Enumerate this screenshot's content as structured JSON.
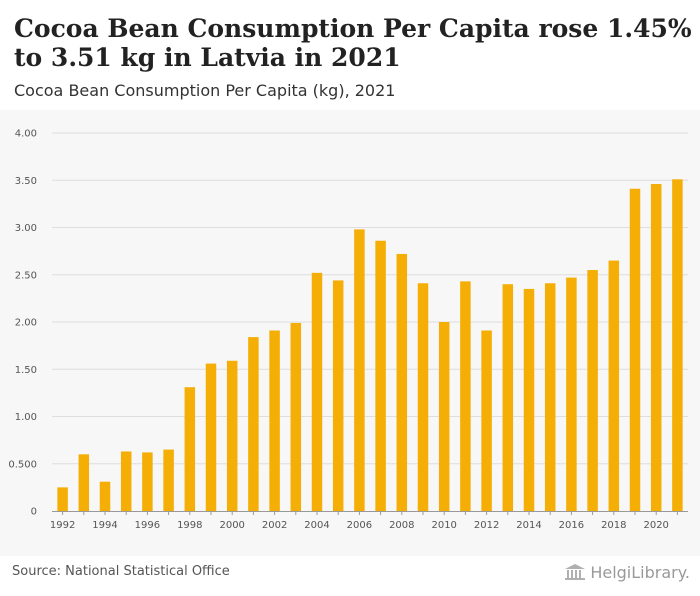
{
  "header": {
    "title": "Cocoa Bean Consumption Per Capita rose 1.45% to 3.51 kg in Latvia in 2021",
    "subtitle": "Cocoa Bean Consumption Per Capita (kg), 2021"
  },
  "footer": {
    "source": "Source: National Statistical Office",
    "brand": "HelgiLibrary."
  },
  "colors": {
    "bar": "#F5AE06",
    "grid": "#dedede",
    "axis": "#999999",
    "panel": "#f7f7f7"
  },
  "chart_data": {
    "type": "bar",
    "title": "Cocoa Bean Consumption Per Capita (kg), 2021",
    "xlabel": "",
    "ylabel": "",
    "ylim": [
      0,
      4
    ],
    "y_ticks": [
      0,
      0.5,
      1.0,
      1.5,
      2.0,
      2.5,
      3.0,
      3.5,
      4.0
    ],
    "y_tick_labels": [
      "0",
      "0.500",
      "1.00",
      "1.50",
      "2.00",
      "2.50",
      "3.00",
      "3.50",
      "4.00"
    ],
    "grid": true,
    "categories": [
      "1992",
      "1993",
      "1994",
      "1995",
      "1996",
      "1997",
      "1998",
      "1999",
      "2000",
      "2001",
      "2002",
      "2003",
      "2004",
      "2005",
      "2006",
      "2007",
      "2008",
      "2009",
      "2010",
      "2011",
      "2012",
      "2013",
      "2014",
      "2015",
      "2016",
      "2017",
      "2018",
      "2019",
      "2020",
      "2021"
    ],
    "x_tick_labels": [
      "1992",
      "1994",
      "1996",
      "1998",
      "2000",
      "2002",
      "2004",
      "2006",
      "2008",
      "2010",
      "2012",
      "2014",
      "2016",
      "2018",
      "2020"
    ],
    "values": [
      0.25,
      0.6,
      0.31,
      0.63,
      0.62,
      0.65,
      1.31,
      1.56,
      1.59,
      1.84,
      1.91,
      1.99,
      2.52,
      2.44,
      2.98,
      2.86,
      2.72,
      2.41,
      2.0,
      2.43,
      1.91,
      2.4,
      2.35,
      2.41,
      2.47,
      2.55,
      2.65,
      3.41,
      3.46,
      3.51
    ]
  }
}
